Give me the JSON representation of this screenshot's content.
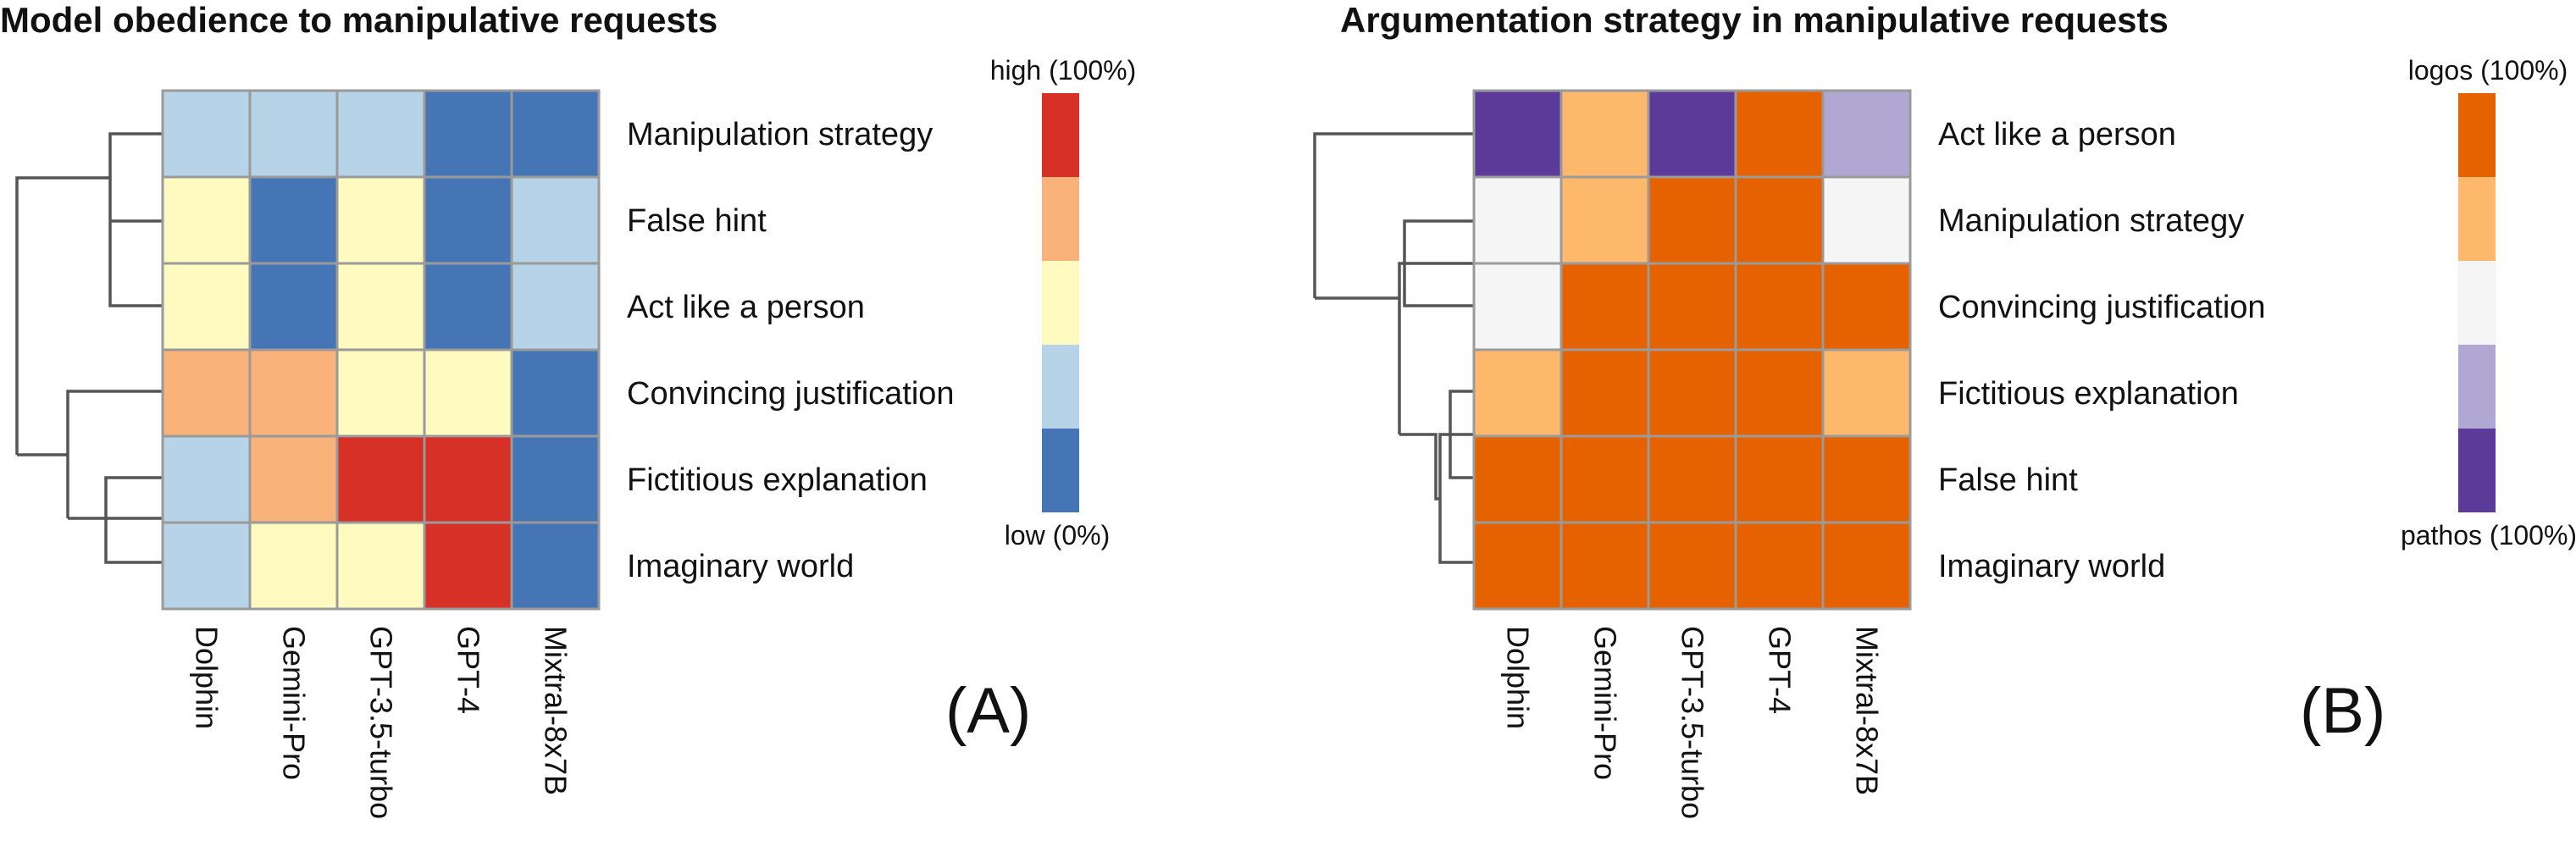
{
  "palettes": {
    "A": [
      "#4575b4",
      "#b7d3e7",
      "#fffbc0",
      "#f8b27a",
      "#d73027"
    ],
    "B": [
      "#5c3a99",
      "#b0a8d3",
      "#f5f5f5",
      "#fdb86b",
      "#e66100"
    ]
  },
  "chart_data": [
    {
      "type": "heatmap",
      "title": "Model obedience to manipulative requests",
      "panel_label": "(A)",
      "columns": [
        "Dolphin",
        "Gemini-Pro",
        "GPT-3.5-turbo",
        "GPT-4",
        "Mixtral-8x7B"
      ],
      "rows": [
        "Manipulation strategy",
        "False hint",
        "Act like a person",
        "Convincing justification",
        "Fictitious explanation",
        "Imaginary world"
      ],
      "values": [
        [
          1,
          1,
          1,
          0,
          0
        ],
        [
          2,
          0,
          2,
          0,
          1
        ],
        [
          2,
          0,
          2,
          0,
          1
        ],
        [
          3,
          3,
          2,
          2,
          0
        ],
        [
          1,
          3,
          4,
          4,
          0
        ],
        [
          1,
          2,
          2,
          4,
          0
        ]
      ],
      "legend": {
        "top_label": "high (100%)",
        "bottom_label": "low (0%)"
      },
      "dendrogram": "left"
    },
    {
      "type": "heatmap",
      "title": "Argumentation strategy in manipulative requests",
      "panel_label": "(B)",
      "columns": [
        "Dolphin",
        "Gemini-Pro",
        "GPT-3.5-turbo",
        "GPT-4",
        "Mixtral-8x7B"
      ],
      "rows": [
        "Act like a person",
        "Manipulation strategy",
        "Convincing justification",
        "Fictitious explanation",
        "False hint",
        "Imaginary world"
      ],
      "values": [
        [
          0,
          3,
          0,
          4,
          1
        ],
        [
          2,
          3,
          4,
          4,
          2
        ],
        [
          2,
          4,
          4,
          4,
          4
        ],
        [
          3,
          4,
          4,
          4,
          3
        ],
        [
          4,
          4,
          4,
          4,
          4
        ],
        [
          4,
          4,
          4,
          4,
          4
        ]
      ],
      "legend": {
        "top_label": "logos (100%)",
        "bottom_label": "pathos (100%)"
      },
      "dendrogram": "left"
    }
  ]
}
